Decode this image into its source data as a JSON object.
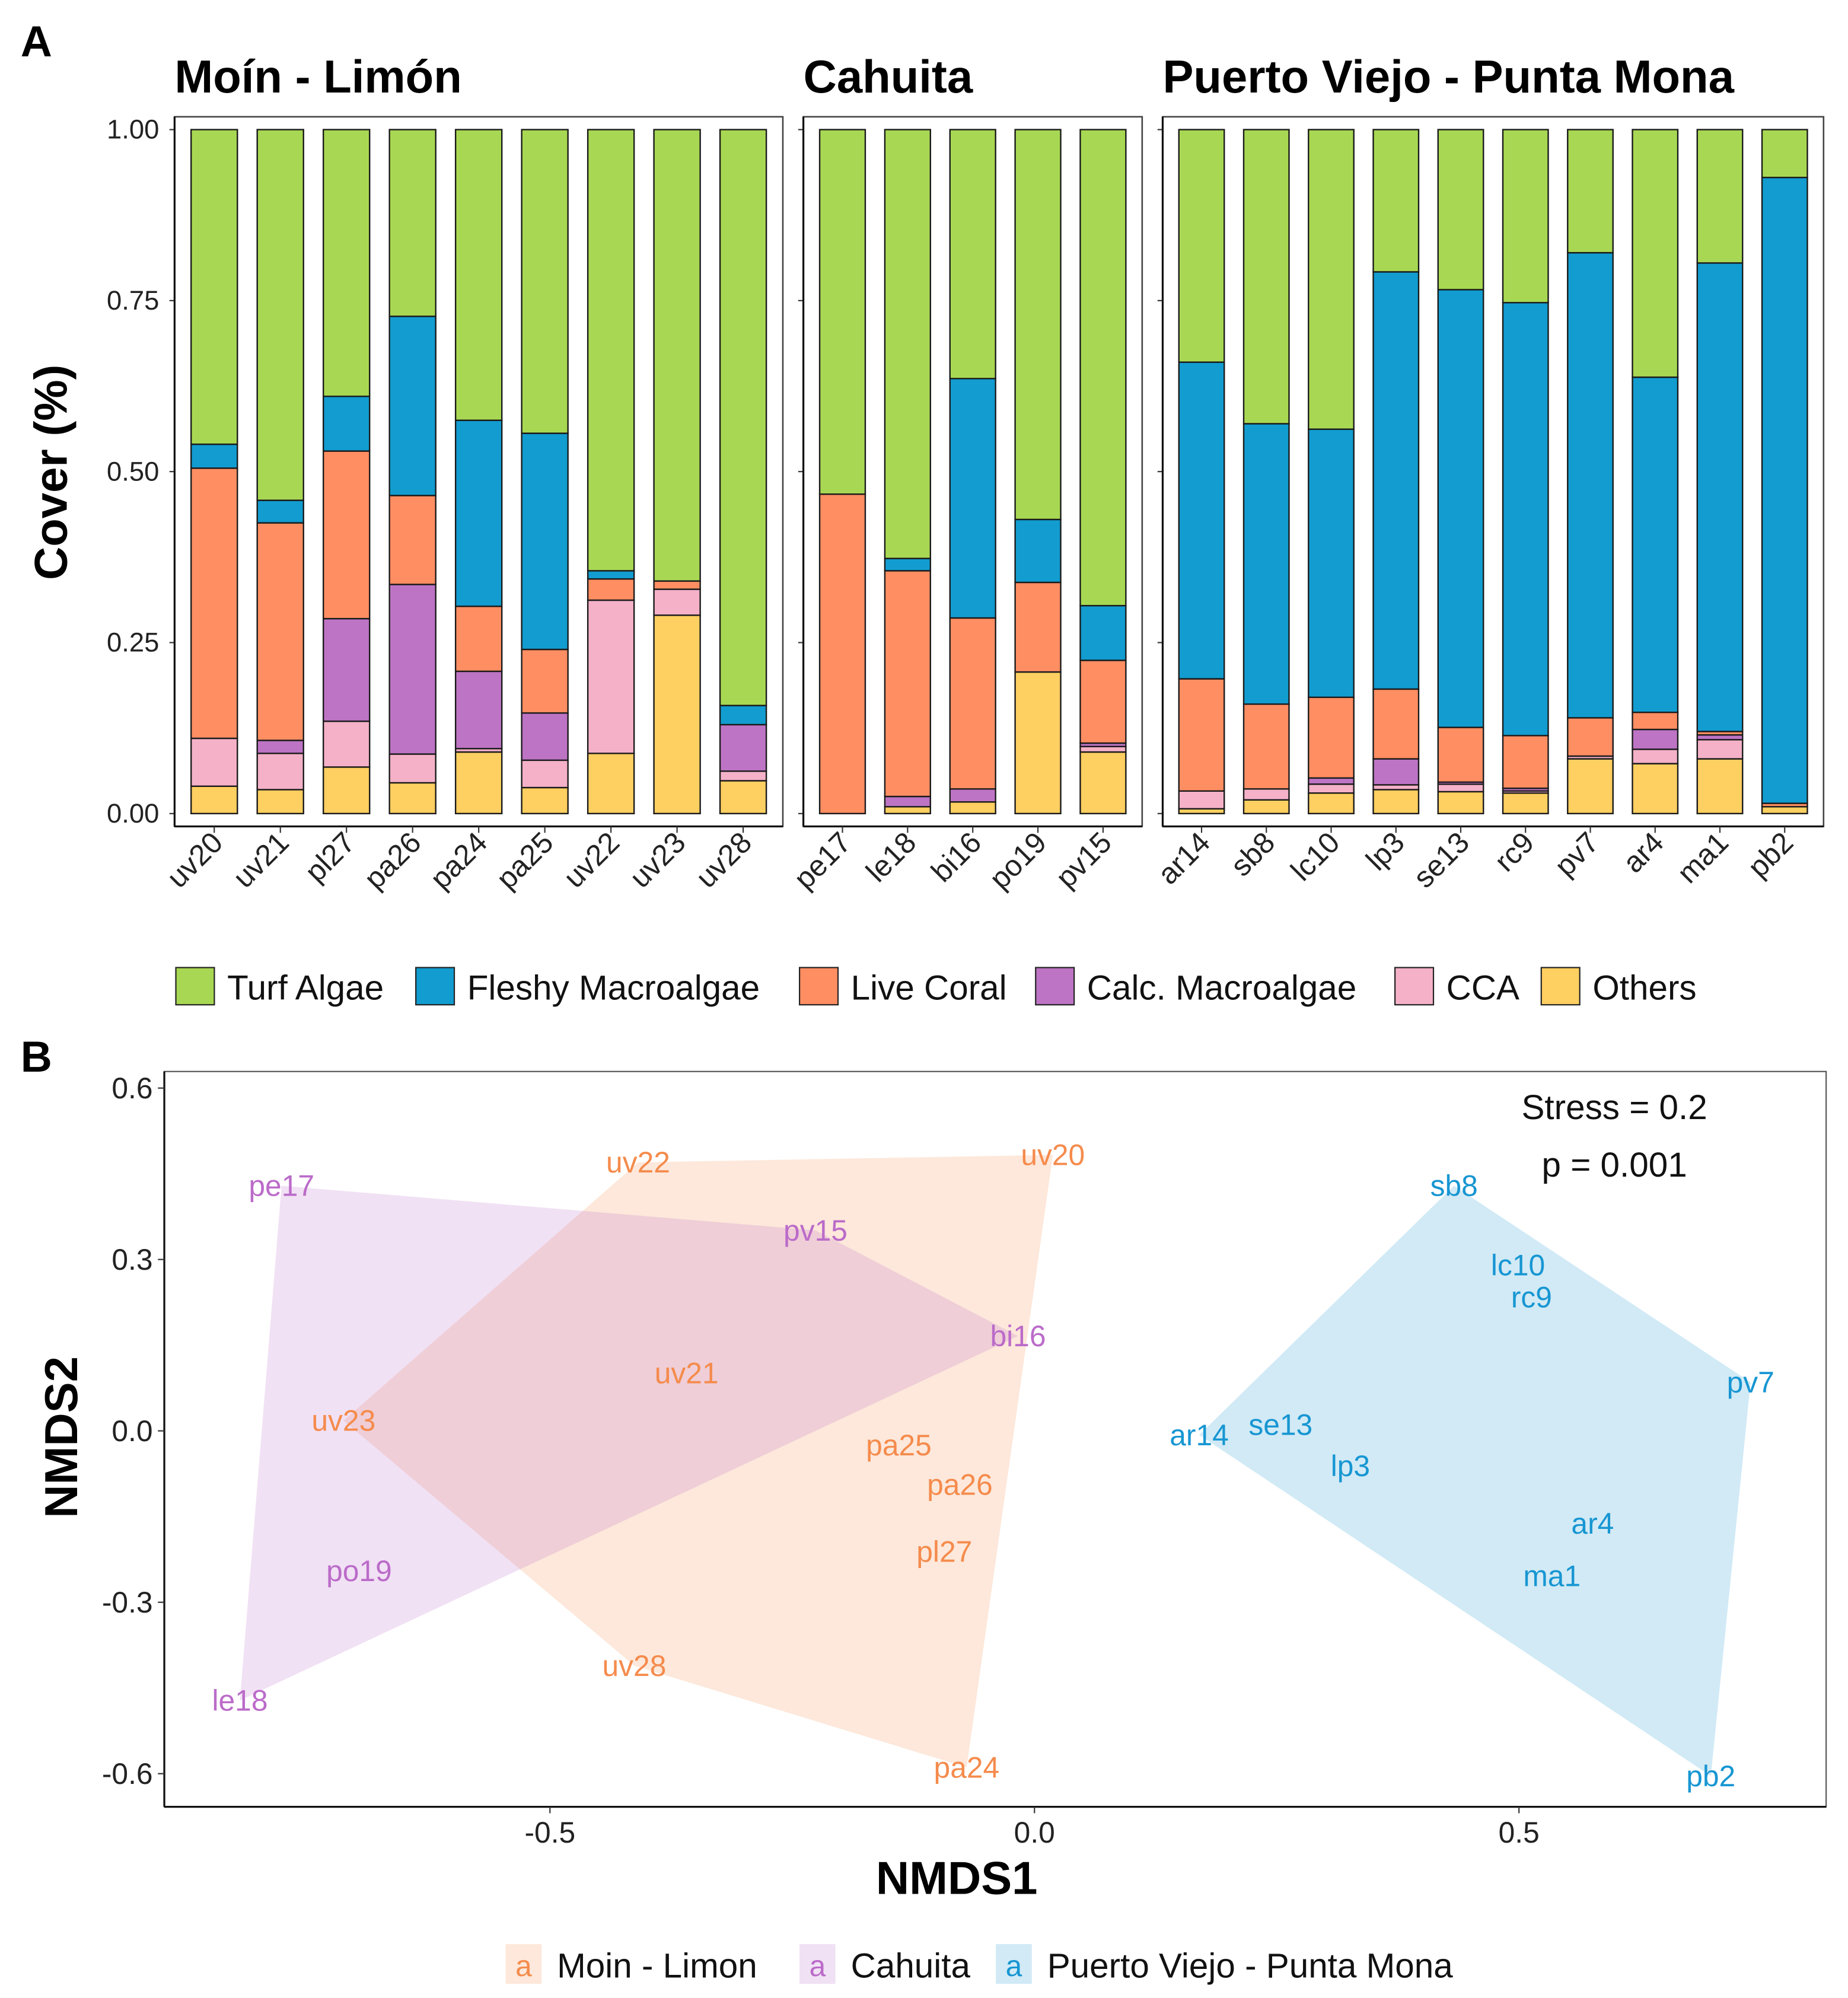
{
  "panel_labels": {
    "a": "A",
    "b": "B"
  },
  "chart_data": [
    {
      "type": "bar",
      "stacked": true,
      "ylabel": "Cover (%)",
      "ylim": [
        0,
        1
      ],
      "yticks": [
        "0.00",
        "0.25",
        "0.50",
        "0.75",
        "1.00"
      ],
      "legend_position": "bottom",
      "categories": [
        "Turf Algae",
        "Fleshy Macroalgae",
        "Live Coral",
        "Calc. Macroalgae",
        "CCA",
        "Others"
      ],
      "colors": [
        "#A8D853",
        "#129CD0",
        "#FF8E62",
        "#BD74C4",
        "#F4B1C8",
        "#FECF61"
      ],
      "facets": [
        {
          "title": "Moín - Limón",
          "sites": [
            {
              "site": "uv20",
              "values": [
                0.46,
                0.035,
                0.395,
                0,
                0.07,
                0.04
              ]
            },
            {
              "site": "uv21",
              "values": [
                0.542,
                0.033,
                0.318,
                0.019,
                0.053,
                0.035
              ]
            },
            {
              "site": "pl27",
              "values": [
                0.39,
                0.08,
                0.245,
                0.15,
                0.067,
                0.068
              ]
            },
            {
              "site": "pa26",
              "values": [
                0.273,
                0.262,
                0.13,
                0.248,
                0.042,
                0.045
              ]
            },
            {
              "site": "pa24",
              "values": [
                0.425,
                0.272,
                0.095,
                0.113,
                0.005,
                0.09
              ]
            },
            {
              "site": "pa25",
              "values": [
                0.444,
                0.316,
                0.093,
                0.069,
                0.04,
                0.038
              ]
            },
            {
              "site": "uv22",
              "values": [
                0.645,
                0.012,
                0.031,
                0,
                0.224,
                0.088
              ]
            },
            {
              "site": "uv23",
              "values": [
                0.66,
                0,
                0.012,
                0,
                0.038,
                0.29
              ]
            },
            {
              "site": "uv28",
              "values": [
                0.842,
                0.028,
                0,
                0.068,
                0.014,
                0.048
              ]
            }
          ]
        },
        {
          "title": "Cahuita",
          "sites": [
            {
              "site": "pe17",
              "values": [
                0.533,
                0,
                0.467,
                0,
                0,
                0
              ]
            },
            {
              "site": "le18",
              "values": [
                0.627,
                0.018,
                0.33,
                0.015,
                0,
                0.01
              ]
            },
            {
              "site": "bi16",
              "values": [
                0.364,
                0.35,
                0.25,
                0.019,
                0,
                0.017
              ]
            },
            {
              "site": "po19",
              "values": [
                0.57,
                0.092,
                0.131,
                0,
                0,
                0.207
              ]
            },
            {
              "site": "pv15",
              "values": [
                0.696,
                0.08,
                0.121,
                0.005,
                0.008,
                0.09
              ]
            }
          ]
        },
        {
          "title": "Puerto Viejo - Punta Mona",
          "sites": [
            {
              "site": "ar14",
              "values": [
                0.34,
                0.463,
                0.164,
                0,
                0.026,
                0.007
              ]
            },
            {
              "site": "sb8",
              "values": [
                0.43,
                0.41,
                0.124,
                0,
                0.016,
                0.02
              ]
            },
            {
              "site": "lc10",
              "values": [
                0.438,
                0.392,
                0.118,
                0.009,
                0.013,
                0.03
              ]
            },
            {
              "site": "lp3",
              "values": [
                0.208,
                0.61,
                0.102,
                0.038,
                0.007,
                0.035
              ]
            },
            {
              "site": "se13",
              "values": [
                0.234,
                0.64,
                0.08,
                0.003,
                0.011,
                0.032
              ]
            },
            {
              "site": "rc9",
              "values": [
                0.253,
                0.633,
                0.077,
                0.004,
                0.003,
                0.03
              ]
            },
            {
              "site": "pv7",
              "values": [
                0.18,
                0.68,
                0.056,
                0,
                0.004,
                0.08
              ]
            },
            {
              "site": "ar4",
              "values": [
                0.362,
                0.49,
                0.025,
                0.029,
                0.021,
                0.073
              ]
            },
            {
              "site": "ma1",
              "values": [
                0.195,
                0.685,
                0.005,
                0.007,
                0.028,
                0.08
              ]
            },
            {
              "site": "pb2",
              "values": [
                0.07,
                0.915,
                0.005,
                0,
                0,
                0.01
              ]
            }
          ]
        }
      ]
    },
    {
      "type": "scatter",
      "xlabel": "NMDS1",
      "ylabel": "NMDS2",
      "xlim": [
        -0.898,
        0.817
      ],
      "ylim": [
        -0.658,
        0.629
      ],
      "xticks": [
        -0.5,
        0.0,
        0.5
      ],
      "xtick_labels": [
        "-0.5",
        "0.0",
        "0.5"
      ],
      "yticks": [
        -0.6,
        -0.3,
        0.0,
        0.3,
        0.6
      ],
      "ytick_labels": [
        "-0.6",
        "-0.3",
        "0.0",
        "0.3",
        "0.6"
      ],
      "grid": false,
      "hulls": true,
      "annotations": [
        "Stress = 0.2",
        "p = 0.001"
      ],
      "legend_position": "bottom",
      "legend_key_glyph": "a",
      "series": [
        {
          "name": "Moin - Limon",
          "color": "#F58B4C",
          "points": [
            {
              "label": "uv22",
              "x": -0.409,
              "y": 0.47
            },
            {
              "label": "uv20",
              "x": 0.019,
              "y": 0.483
            },
            {
              "label": "uv21",
              "x": -0.359,
              "y": 0.101
            },
            {
              "label": "uv23",
              "x": -0.713,
              "y": 0.018
            },
            {
              "label": "pa25",
              "x": -0.14,
              "y": -0.025
            },
            {
              "label": "pa26",
              "x": -0.077,
              "y": -0.094
            },
            {
              "label": "pl27",
              "x": -0.093,
              "y": -0.211
            },
            {
              "label": "uv28",
              "x": -0.413,
              "y": -0.411
            },
            {
              "label": "pa24",
              "x": -0.07,
              "y": -0.589
            }
          ]
        },
        {
          "name": "Cahuita",
          "color": "#BB6BC9",
          "points": [
            {
              "label": "pe17",
              "x": -0.777,
              "y": 0.429
            },
            {
              "label": "pv15",
              "x": -0.226,
              "y": 0.351
            },
            {
              "label": "bi16",
              "x": -0.017,
              "y": 0.166
            },
            {
              "label": "po19",
              "x": -0.697,
              "y": -0.245
            },
            {
              "label": "le18",
              "x": -0.82,
              "y": -0.472
            }
          ]
        },
        {
          "name": "Puerto Viejo - Punta Mona",
          "color": "#1796D2",
          "points": [
            {
              "label": "sb8",
              "x": 0.433,
              "y": 0.429
            },
            {
              "label": "lc10",
              "x": 0.499,
              "y": 0.29
            },
            {
              "label": "rc9",
              "x": 0.513,
              "y": 0.234
            },
            {
              "label": "pv7",
              "x": 0.739,
              "y": 0.085
            },
            {
              "label": "ar14",
              "x": 0.17,
              "y": -0.007
            },
            {
              "label": "se13",
              "x": 0.254,
              "y": 0.011
            },
            {
              "label": "lp3",
              "x": 0.326,
              "y": -0.061
            },
            {
              "label": "ar4",
              "x": 0.576,
              "y": -0.162
            },
            {
              "label": "ma1",
              "x": 0.534,
              "y": -0.254
            },
            {
              "label": "pb2",
              "x": 0.698,
              "y": -0.604
            }
          ]
        }
      ]
    }
  ]
}
